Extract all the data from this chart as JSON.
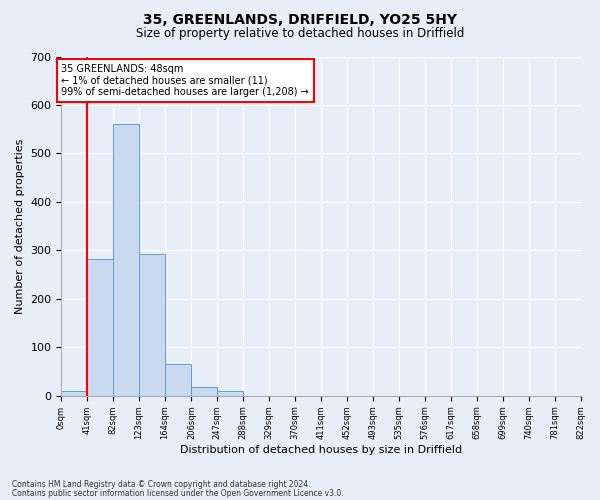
{
  "title": "35, GREENLANDS, DRIFFIELD, YO25 5HY",
  "subtitle": "Size of property relative to detached houses in Driffield",
  "xlabel": "Distribution of detached houses by size in Driffield",
  "ylabel": "Number of detached properties",
  "bar_edges": [
    0,
    41,
    82,
    123,
    164,
    206,
    247,
    288,
    329,
    370,
    411,
    452,
    493,
    535,
    576,
    617,
    658,
    699,
    740,
    781,
    822
  ],
  "bar_heights": [
    11,
    283,
    560,
    293,
    65,
    18,
    11,
    0,
    0,
    0,
    0,
    0,
    0,
    0,
    0,
    0,
    0,
    0,
    0,
    0
  ],
  "bar_color": "#c8d9f0",
  "bar_edgecolor": "#5a9fd4",
  "annotation_text": "35 GREENLANDS: 48sqm\n← 1% of detached houses are smaller (11)\n99% of semi-detached houses are larger (1,208) →",
  "red_line_x": 41,
  "ylim": [
    0,
    700
  ],
  "yticks": [
    0,
    100,
    200,
    300,
    400,
    500,
    600,
    700
  ],
  "footnote1": "Contains HM Land Registry data © Crown copyright and database right 2024.",
  "footnote2": "Contains public sector information licensed under the Open Government Licence v3.0.",
  "bg_color": "#e8eef8",
  "plot_bg_color": "#e8eef8",
  "grid_color": "#ffffff",
  "title_fontsize": 10,
  "subtitle_fontsize": 8.5
}
